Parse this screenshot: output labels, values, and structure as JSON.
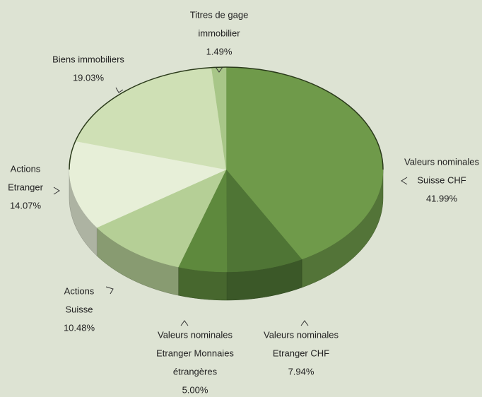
{
  "chart_data": {
    "type": "pie",
    "categories": [
      [
        "Valeurs nominales",
        "Suisse CHF"
      ],
      [
        "Valeurs nominales",
        "Etranger CHF"
      ],
      [
        "Valeurs nominales",
        "Etranger Monnaies",
        "étrangères"
      ],
      [
        "Actions",
        "Suisse"
      ],
      [
        "Actions",
        "Etranger"
      ],
      [
        "Biens immobiliers"
      ],
      [
        "Titres de gage",
        "immobilier"
      ]
    ],
    "values": [
      41.99,
      7.94,
      5.0,
      10.48,
      14.07,
      19.03,
      1.49
    ],
    "value_labels": [
      "41.99%",
      "7.94%",
      "5.00%",
      "10.48%",
      "14.07%",
      "19.03%",
      "1.49%"
    ],
    "colors": [
      "#6f9a4a",
      "#4f7535",
      "#5e893d",
      "#b5cf96",
      "#e7efd8",
      "#cfe0b5",
      "#a8c688"
    ]
  }
}
